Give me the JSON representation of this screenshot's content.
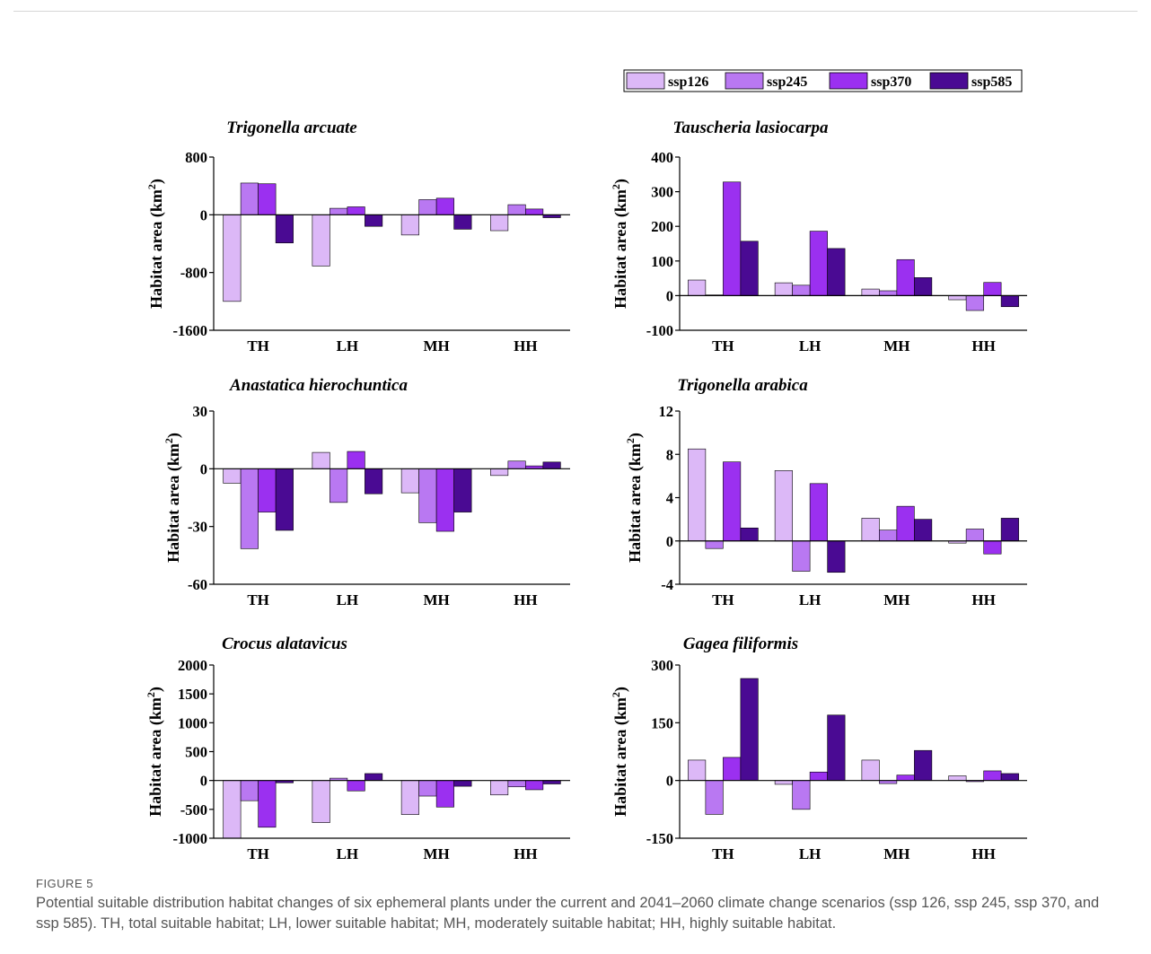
{
  "figure": {
    "label": "FIGURE 5",
    "caption": "Potential suitable distribution habitat changes of six ephemeral plants under the current and 2041–2060 climate change scenarios (ssp 126, ssp 245, ssp 370, and ssp 585). TH, total suitable habitat; LH, lower suitable habitat; MH, moderately suitable habitat; HH, highly suitable habitat."
  },
  "legend": {
    "items": [
      {
        "name": "ssp126",
        "color": "#dcb8f7"
      },
      {
        "name": "ssp245",
        "color": "#b978f2"
      },
      {
        "name": "ssp370",
        "color": "#9b30f0"
      },
      {
        "name": "ssp585",
        "color": "#4a0a93"
      }
    ]
  },
  "chart_data": [
    {
      "type": "bar",
      "title": "Trigonella arcuate",
      "ylabel": "Habitat area (km²)",
      "categories": [
        "TH",
        "LH",
        "MH",
        "HH"
      ],
      "ylim": [
        -1600,
        800
      ],
      "yticks": [
        800,
        0,
        -800,
        -1600
      ],
      "series": [
        {
          "name": "ssp126",
          "values": [
            -1200,
            -710,
            -280,
            -220
          ]
        },
        {
          "name": "ssp245",
          "values": [
            440,
            90,
            210,
            140
          ]
        },
        {
          "name": "ssp370",
          "values": [
            430,
            110,
            230,
            80
          ]
        },
        {
          "name": "ssp585",
          "values": [
            -390,
            -160,
            -200,
            -40
          ]
        }
      ]
    },
    {
      "type": "bar",
      "title": "Tauscheria lasiocarpa",
      "ylabel": "Habitat area (km²)",
      "categories": [
        "TH",
        "LH",
        "MH",
        "HH"
      ],
      "ylim": [
        -100,
        400
      ],
      "yticks": [
        400,
        300,
        200,
        100,
        0,
        -100
      ],
      "series": [
        {
          "name": "ssp126",
          "values": [
            45,
            37,
            19,
            -12
          ]
        },
        {
          "name": "ssp245",
          "values": [
            2,
            30,
            14,
            -43
          ]
        },
        {
          "name": "ssp370",
          "values": [
            328,
            186,
            104,
            38
          ]
        },
        {
          "name": "ssp585",
          "values": [
            157,
            136,
            52,
            -32
          ]
        }
      ]
    },
    {
      "type": "bar",
      "title": "Anastatica hierochuntica",
      "ylabel": "Habitat area (km²)",
      "categories": [
        "TH",
        "LH",
        "MH",
        "HH"
      ],
      "ylim": [
        -60,
        30
      ],
      "yticks": [
        30,
        0,
        -30,
        -60
      ],
      "series": [
        {
          "name": "ssp126",
          "values": [
            -7.5,
            8.5,
            -12.5,
            -3.5
          ]
        },
        {
          "name": "ssp245",
          "values": [
            -41.5,
            -17.5,
            -28,
            4
          ]
        },
        {
          "name": "ssp370",
          "values": [
            -22.5,
            9,
            -32.5,
            1.5
          ]
        },
        {
          "name": "ssp585",
          "values": [
            -32,
            -13,
            -22.5,
            3.5
          ]
        }
      ]
    },
    {
      "type": "bar",
      "title": "Trigonella arabica",
      "ylabel": "Habitat area (km²)",
      "categories": [
        "TH",
        "LH",
        "MH",
        "HH"
      ],
      "ylim": [
        -4,
        12
      ],
      "yticks": [
        12,
        8,
        4,
        0,
        -4
      ],
      "series": [
        {
          "name": "ssp126",
          "values": [
            8.5,
            6.5,
            2.1,
            -0.2
          ]
        },
        {
          "name": "ssp245",
          "values": [
            -0.7,
            -2.8,
            1.0,
            1.1
          ]
        },
        {
          "name": "ssp370",
          "values": [
            7.3,
            5.3,
            3.2,
            -1.2
          ]
        },
        {
          "name": "ssp585",
          "values": [
            1.2,
            -2.9,
            2.0,
            2.1
          ]
        }
      ]
    },
    {
      "type": "bar",
      "title": "Crocus alatavicus",
      "ylabel": "Habitat area (km²)",
      "categories": [
        "TH",
        "LH",
        "MH",
        "HH"
      ],
      "ylim": [
        -1000,
        2000
      ],
      "yticks": [
        2000,
        1500,
        1000,
        500,
        0,
        -500,
        -1000
      ],
      "series": [
        {
          "name": "ssp126",
          "values": [
            -1000,
            -730,
            -590,
            -250
          ]
        },
        {
          "name": "ssp245",
          "values": [
            -350,
            40,
            -270,
            -110
          ]
        },
        {
          "name": "ssp370",
          "values": [
            -810,
            -180,
            -460,
            -160
          ]
        },
        {
          "name": "ssp585",
          "values": [
            -40,
            120,
            -100,
            -60
          ]
        }
      ]
    },
    {
      "type": "bar",
      "title": "Gagea filiformis",
      "ylabel": "Habitat area (km²)",
      "categories": [
        "TH",
        "LH",
        "MH",
        "HH"
      ],
      "ylim": [
        -150,
        300
      ],
      "yticks": [
        300,
        150,
        0,
        -150
      ],
      "series": [
        {
          "name": "ssp126",
          "values": [
            53,
            -10,
            53,
            12
          ]
        },
        {
          "name": "ssp245",
          "values": [
            -88,
            -75,
            -8,
            -3
          ]
        },
        {
          "name": "ssp370",
          "values": [
            60,
            22,
            14,
            25
          ]
        },
        {
          "name": "ssp585",
          "values": [
            265,
            170,
            78,
            18
          ]
        }
      ]
    }
  ]
}
